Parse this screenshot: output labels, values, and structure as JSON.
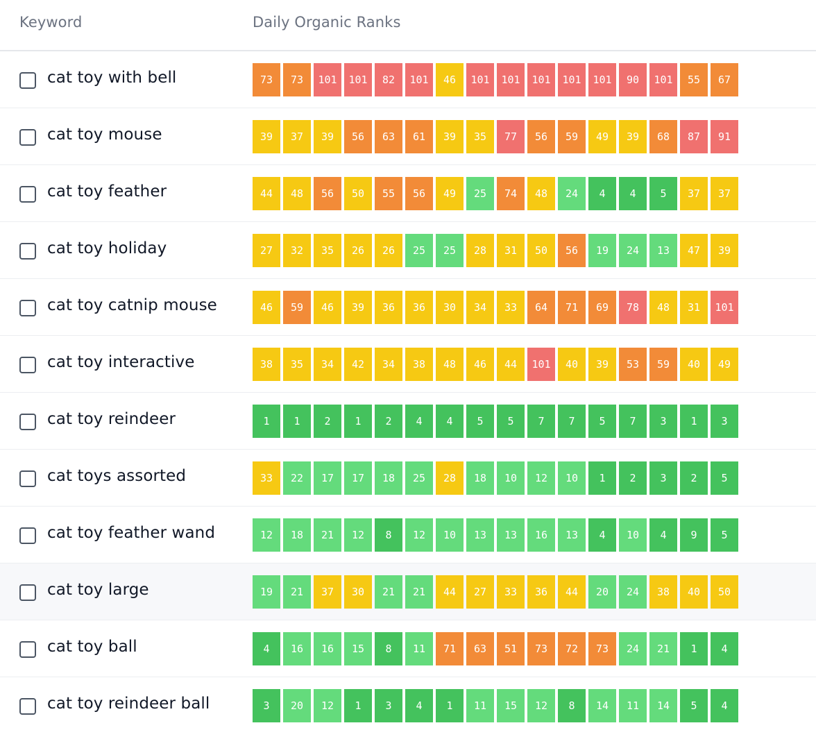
{
  "header": {
    "keyword_label": "Keyword",
    "ranks_label": "Daily Organic Ranks"
  },
  "colors": {
    "red": "#f0716f",
    "orange": "#f28b38",
    "yellow": "#f6c913",
    "light_green": "#64db7c",
    "green": "#44c25d",
    "header_text": "#6b7280",
    "keyword_text": "#111827"
  },
  "rows": [
    {
      "keyword": "cat toy with bell",
      "ranks": [
        73,
        73,
        101,
        101,
        82,
        101,
        46,
        101,
        101,
        101,
        101,
        101,
        90,
        101,
        55,
        67
      ]
    },
    {
      "keyword": "cat toy mouse",
      "ranks": [
        39,
        37,
        39,
        56,
        63,
        61,
        39,
        35,
        77,
        56,
        59,
        49,
        39,
        68,
        87,
        91
      ]
    },
    {
      "keyword": "cat toy feather",
      "ranks": [
        44,
        48,
        56,
        50,
        55,
        56,
        49,
        25,
        74,
        48,
        24,
        4,
        4,
        5,
        37,
        37
      ]
    },
    {
      "keyword": "cat toy holiday",
      "ranks": [
        27,
        32,
        35,
        26,
        26,
        25,
        25,
        28,
        31,
        50,
        56,
        19,
        24,
        13,
        47,
        39
      ]
    },
    {
      "keyword": "cat toy catnip mouse",
      "ranks": [
        46,
        59,
        46,
        39,
        36,
        36,
        30,
        34,
        33,
        64,
        71,
        69,
        78,
        48,
        31,
        101
      ]
    },
    {
      "keyword": "cat toy interactive",
      "ranks": [
        38,
        35,
        34,
        42,
        34,
        38,
        48,
        46,
        44,
        101,
        40,
        39,
        53,
        59,
        40,
        49
      ]
    },
    {
      "keyword": "cat toy reindeer",
      "ranks": [
        1,
        1,
        2,
        1,
        2,
        4,
        4,
        5,
        5,
        7,
        7,
        5,
        7,
        3,
        1,
        3
      ]
    },
    {
      "keyword": "cat toys assorted",
      "ranks": [
        33,
        22,
        17,
        17,
        18,
        25,
        28,
        18,
        10,
        12,
        10,
        1,
        2,
        3,
        2,
        5
      ]
    },
    {
      "keyword": "cat toy feather wand",
      "ranks": [
        12,
        18,
        21,
        12,
        8,
        12,
        10,
        13,
        13,
        16,
        13,
        4,
        10,
        4,
        9,
        5
      ]
    },
    {
      "keyword": "cat toy large",
      "ranks": [
        19,
        21,
        37,
        30,
        21,
        21,
        44,
        27,
        33,
        36,
        44,
        20,
        24,
        38,
        40,
        50
      ]
    },
    {
      "keyword": "cat toy ball",
      "ranks": [
        4,
        16,
        16,
        15,
        8,
        11,
        71,
        63,
        51,
        73,
        72,
        73,
        24,
        21,
        1,
        4
      ]
    },
    {
      "keyword": "cat toy reindeer ball",
      "ranks": [
        3,
        20,
        12,
        1,
        3,
        4,
        1,
        11,
        15,
        12,
        8,
        14,
        11,
        14,
        5,
        4
      ]
    }
  ]
}
